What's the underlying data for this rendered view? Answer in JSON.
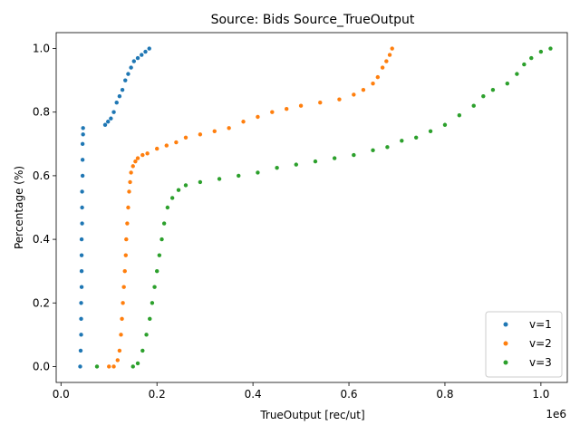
{
  "chart_data": {
    "type": "scatter",
    "title": "Source: Bids Source_TrueOutput",
    "xlabel": "TrueOutput [rec/ut]",
    "ylabel": "Percentage (%)",
    "x_offset_label": "1e6",
    "xlim": [
      -10000,
      1055000
    ],
    "ylim": [
      -0.05,
      1.05
    ],
    "xticks": [
      0,
      200000,
      400000,
      600000,
      800000,
      1000000
    ],
    "xtick_labels": [
      "0.0",
      "0.2",
      "0.4",
      "0.6",
      "0.8",
      "1.0"
    ],
    "yticks": [
      0,
      0.2,
      0.4,
      0.6,
      0.8,
      1.0
    ],
    "ytick_labels": [
      "0.0",
      "0.2",
      "0.4",
      "0.6",
      "0.8",
      "1.0"
    ],
    "legend_position": "lower-right",
    "series": [
      {
        "name": "v=1",
        "color": "#1f77b4",
        "points": [
          [
            40000,
            0.0
          ],
          [
            41000,
            0.05
          ],
          [
            42000,
            0.1
          ],
          [
            42000,
            0.15
          ],
          [
            42000,
            0.2
          ],
          [
            43000,
            0.25
          ],
          [
            43000,
            0.3
          ],
          [
            43000,
            0.35
          ],
          [
            43000,
            0.4
          ],
          [
            44000,
            0.45
          ],
          [
            44000,
            0.5
          ],
          [
            44000,
            0.55
          ],
          [
            45000,
            0.6
          ],
          [
            45000,
            0.65
          ],
          [
            45000,
            0.7
          ],
          [
            46000,
            0.73
          ],
          [
            46000,
            0.75
          ],
          [
            92000,
            0.76
          ],
          [
            98000,
            0.77
          ],
          [
            104000,
            0.78
          ],
          [
            110000,
            0.8
          ],
          [
            116000,
            0.83
          ],
          [
            122000,
            0.85
          ],
          [
            128000,
            0.87
          ],
          [
            134000,
            0.9
          ],
          [
            140000,
            0.92
          ],
          [
            146000,
            0.94
          ],
          [
            152000,
            0.96
          ],
          [
            160000,
            0.97
          ],
          [
            168000,
            0.98
          ],
          [
            176000,
            0.99
          ],
          [
            184000,
            1.0
          ]
        ]
      },
      {
        "name": "v=2",
        "color": "#ff7f0e",
        "points": [
          [
            100000,
            0.0
          ],
          [
            110000,
            0.0
          ],
          [
            118000,
            0.02
          ],
          [
            122000,
            0.05
          ],
          [
            125000,
            0.1
          ],
          [
            127000,
            0.15
          ],
          [
            129000,
            0.2
          ],
          [
            131000,
            0.25
          ],
          [
            133000,
            0.3
          ],
          [
            135000,
            0.35
          ],
          [
            136000,
            0.4
          ],
          [
            138000,
            0.45
          ],
          [
            140000,
            0.5
          ],
          [
            142000,
            0.55
          ],
          [
            144000,
            0.58
          ],
          [
            146000,
            0.61
          ],
          [
            150000,
            0.63
          ],
          [
            155000,
            0.645
          ],
          [
            160000,
            0.655
          ],
          [
            170000,
            0.665
          ],
          [
            180000,
            0.67
          ],
          [
            200000,
            0.685
          ],
          [
            220000,
            0.695
          ],
          [
            240000,
            0.705
          ],
          [
            260000,
            0.72
          ],
          [
            290000,
            0.73
          ],
          [
            320000,
            0.74
          ],
          [
            350000,
            0.75
          ],
          [
            380000,
            0.77
          ],
          [
            410000,
            0.785
          ],
          [
            440000,
            0.8
          ],
          [
            470000,
            0.81
          ],
          [
            500000,
            0.82
          ],
          [
            540000,
            0.83
          ],
          [
            580000,
            0.84
          ],
          [
            610000,
            0.855
          ],
          [
            630000,
            0.87
          ],
          [
            650000,
            0.89
          ],
          [
            660000,
            0.91
          ],
          [
            670000,
            0.94
          ],
          [
            678000,
            0.96
          ],
          [
            685000,
            0.98
          ],
          [
            690000,
            1.0
          ]
        ]
      },
      {
        "name": "v=3",
        "color": "#2ca02c",
        "points": [
          [
            75000,
            0.0
          ],
          [
            150000,
            0.0
          ],
          [
            160000,
            0.01
          ],
          [
            170000,
            0.05
          ],
          [
            178000,
            0.1
          ],
          [
            185000,
            0.15
          ],
          [
            190000,
            0.2
          ],
          [
            195000,
            0.25
          ],
          [
            200000,
            0.3
          ],
          [
            205000,
            0.35
          ],
          [
            210000,
            0.4
          ],
          [
            215000,
            0.45
          ],
          [
            222000,
            0.5
          ],
          [
            232000,
            0.53
          ],
          [
            245000,
            0.555
          ],
          [
            260000,
            0.57
          ],
          [
            290000,
            0.58
          ],
          [
            330000,
            0.59
          ],
          [
            370000,
            0.6
          ],
          [
            410000,
            0.61
          ],
          [
            450000,
            0.625
          ],
          [
            490000,
            0.635
          ],
          [
            530000,
            0.645
          ],
          [
            570000,
            0.655
          ],
          [
            610000,
            0.665
          ],
          [
            650000,
            0.68
          ],
          [
            680000,
            0.69
          ],
          [
            710000,
            0.71
          ],
          [
            740000,
            0.72
          ],
          [
            770000,
            0.74
          ],
          [
            800000,
            0.76
          ],
          [
            830000,
            0.79
          ],
          [
            860000,
            0.82
          ],
          [
            880000,
            0.85
          ],
          [
            900000,
            0.87
          ],
          [
            930000,
            0.89
          ],
          [
            950000,
            0.92
          ],
          [
            965000,
            0.95
          ],
          [
            980000,
            0.97
          ],
          [
            1000000,
            0.99
          ],
          [
            1020000,
            1.0
          ]
        ]
      }
    ]
  }
}
